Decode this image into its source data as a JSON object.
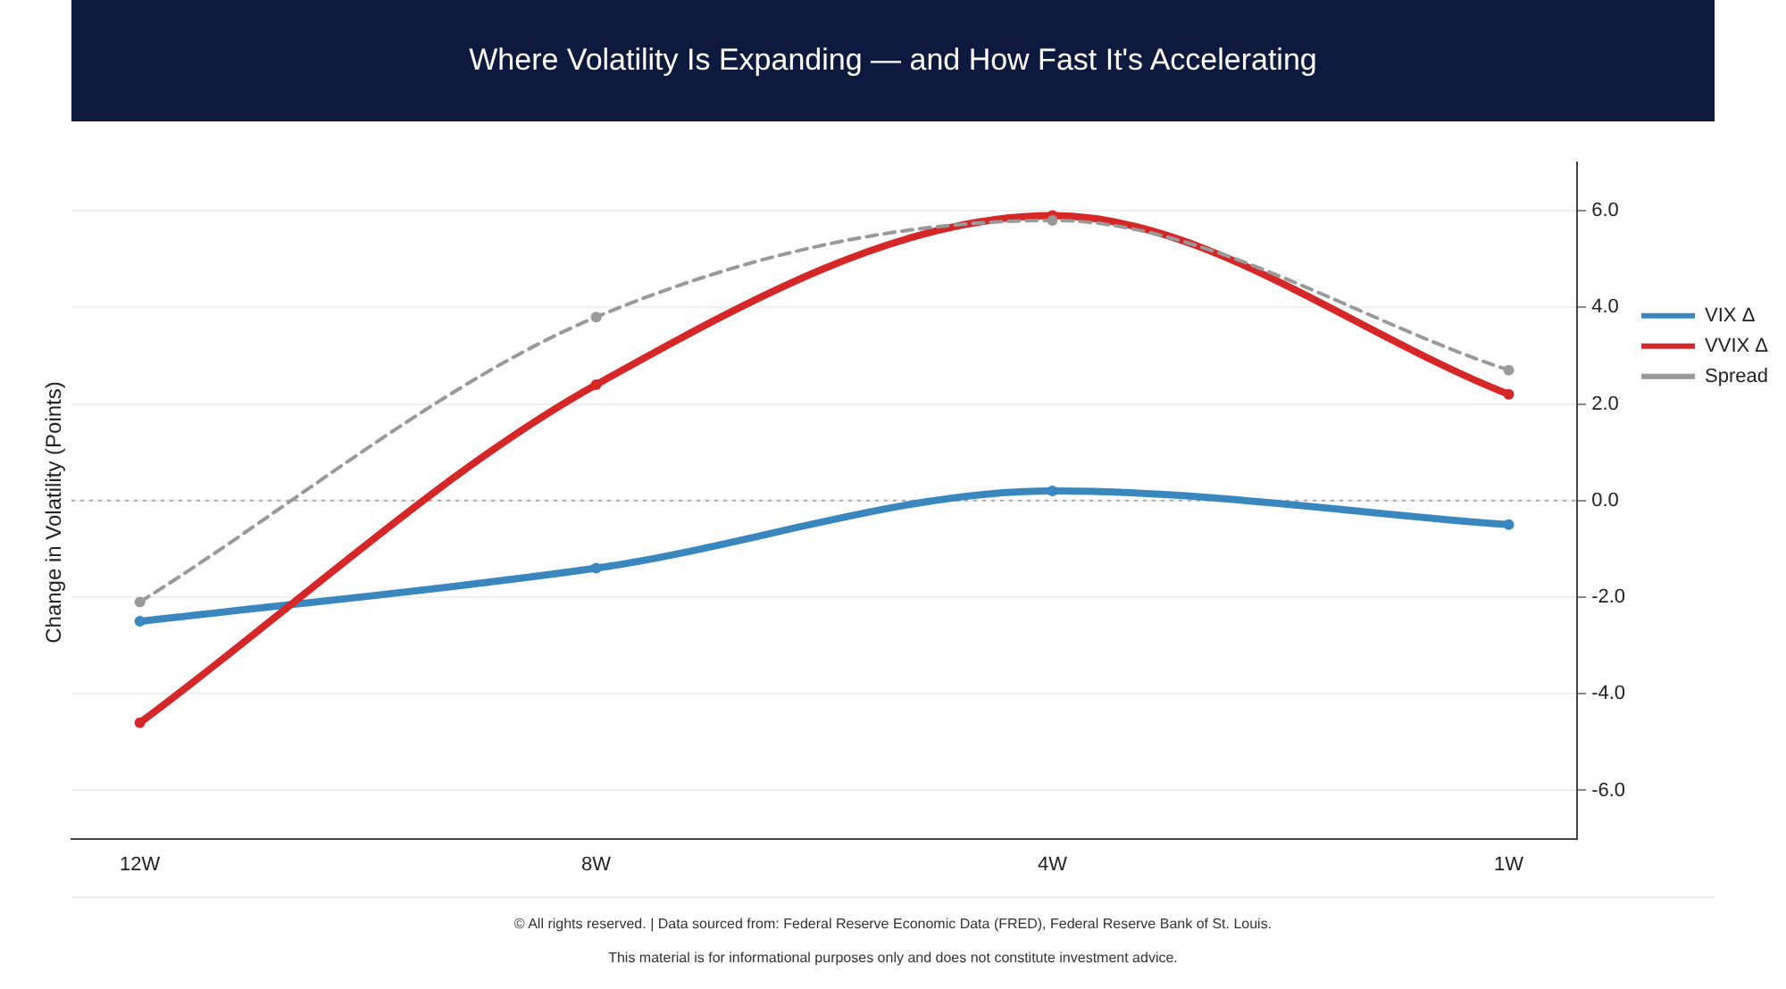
{
  "chart_data": {
    "type": "line",
    "title": "Where Volatility Is Expanding — and How Fast It's Accelerating",
    "ylabel": "Change in Volatility (Points)",
    "categories": [
      "12W",
      "8W",
      "4W",
      "1W"
    ],
    "series": [
      {
        "name": "VIX Δ",
        "color": "#3a87c0",
        "values": [
          -2.5,
          -1.4,
          0.2,
          -0.5
        ]
      },
      {
        "name": "VVIX Δ",
        "color": "#d62728",
        "values": [
          -4.6,
          2.4,
          5.9,
          2.2
        ]
      },
      {
        "name": "Spread",
        "color": "#999999",
        "values": [
          -2.1,
          3.8,
          5.8,
          2.7
        ],
        "line_style": "dashed"
      }
    ],
    "ylim": [
      -7,
      7
    ],
    "yticks": [
      {
        "value": -6,
        "label": "-6.0"
      },
      {
        "value": -4,
        "label": "-4.0"
      },
      {
        "value": -2,
        "label": "-2.0"
      },
      {
        "value": 0,
        "label": "0.0"
      },
      {
        "value": 2,
        "label": "2.0"
      },
      {
        "value": 4,
        "label": "4.0"
      },
      {
        "value": 6,
        "label": "6.0"
      }
    ],
    "ref_lines": [
      {
        "axis": "y",
        "value": 0,
        "color": "#aaaaaa",
        "line_style": "dotted"
      }
    ],
    "grid": "y",
    "legend": "right",
    "marker": "circle",
    "line_style": "solid",
    "annotations": [
      "© All rights reserved.  |  Data sourced from: Federal Reserve Economic Data (FRED), Federal Reserve Bank of St. Louis.",
      "This material is for informational purposes only and does not constitute investment advice."
    ]
  }
}
